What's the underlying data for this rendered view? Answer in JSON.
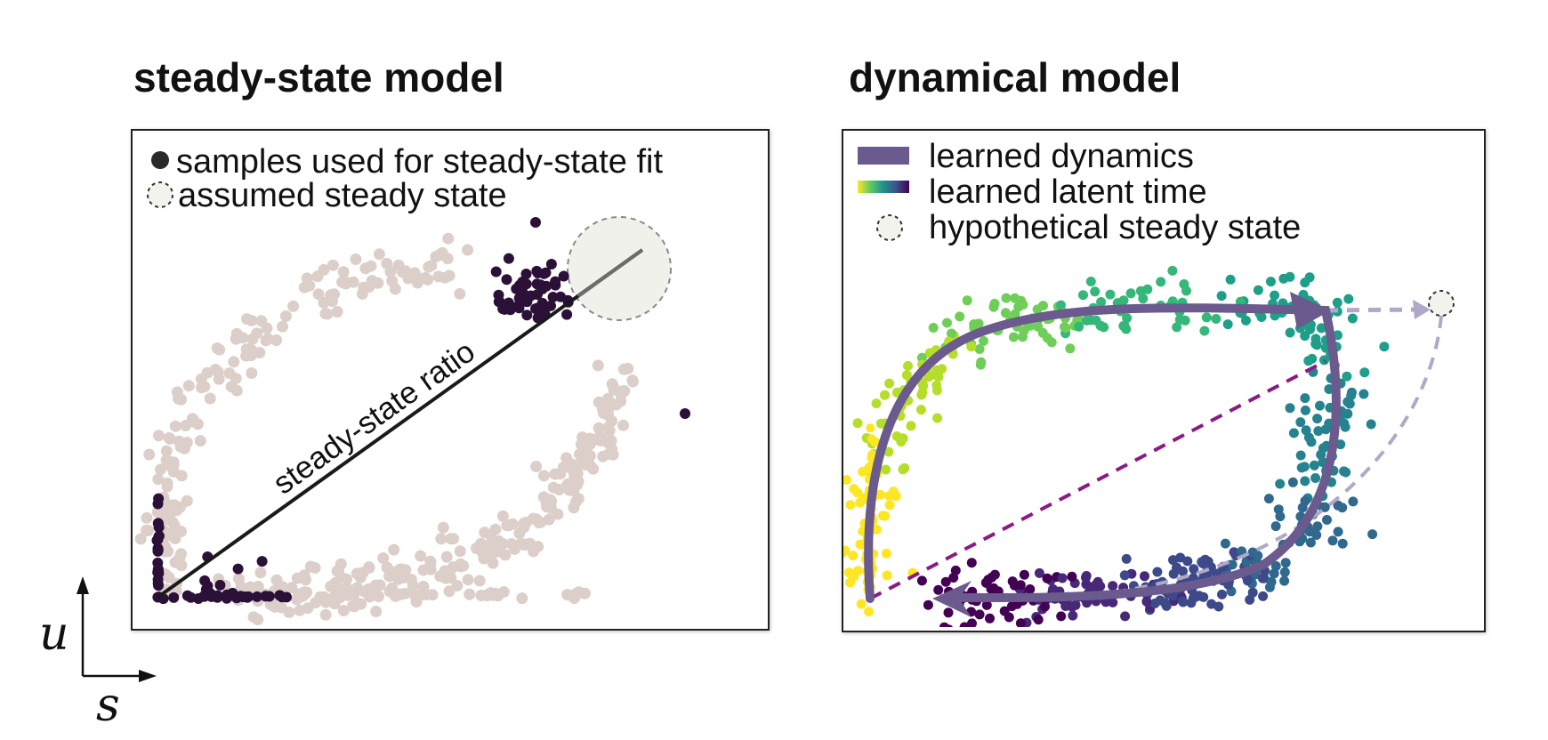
{
  "left_panel": {
    "title": "steady-state model",
    "legend": [
      {
        "label": "samples used for steady-state fit",
        "marker": "filled-dot",
        "color": "#2a2a2a"
      },
      {
        "label": "assumed steady state",
        "marker": "dashed-circle",
        "color": "#f2f3ec"
      }
    ],
    "line_label": "steady-state ratio",
    "colors": {
      "background_points": "#dccfca",
      "fit_points": "#2b1138",
      "circle_fill": "#f0f1ea",
      "line": "#1a1a1a"
    }
  },
  "right_panel": {
    "title": "dynamical model",
    "legend": [
      {
        "label": "learned dynamics",
        "marker": "purple-bar",
        "color": "#6b5a8e"
      },
      {
        "label": "learned latent time",
        "marker": "viridis-gradient",
        "color": "#3b528b"
      },
      {
        "label": "hypothetical steady state",
        "marker": "dashed-circle",
        "color": "#f2f3ec"
      }
    ],
    "colors": {
      "arrow": "#6b5a8e",
      "dashed_line": "#8b1a86",
      "faint_arrow": "#b1a8c8"
    }
  },
  "axes": {
    "y_label": "u",
    "x_label": "s"
  }
}
